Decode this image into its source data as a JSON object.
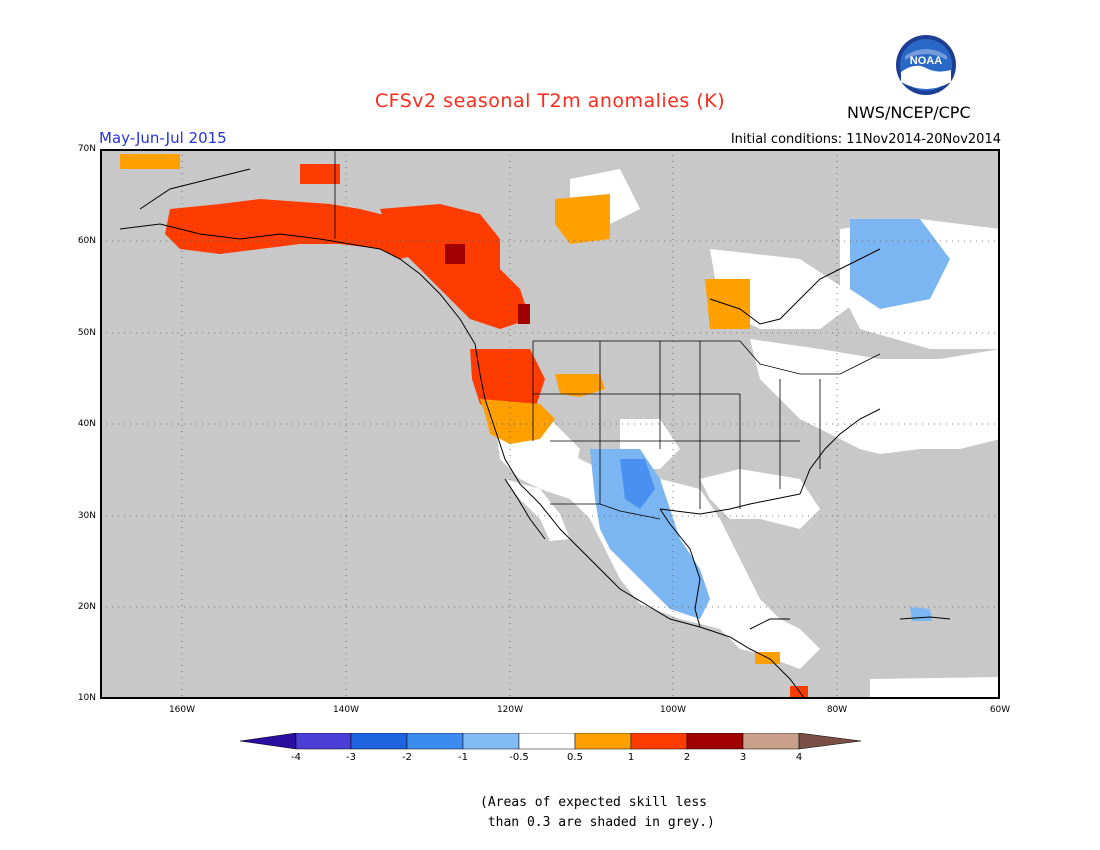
{
  "header": {
    "title": "CFSv2 seasonal T2m anomalies (K)",
    "period": "May-Jun-Jul 2015",
    "init_conditions": "Initial conditions: 11Nov2014-20Nov2014",
    "org": "NWS/NCEP/CPC",
    "logo_text": "NOAA"
  },
  "map": {
    "lat_labels": [
      "70N",
      "60N",
      "50N",
      "40N",
      "30N",
      "20N",
      "10N"
    ],
    "lon_labels": [
      "160W",
      "140W",
      "120W",
      "100W",
      "80W",
      "60W"
    ],
    "colors": {
      "background": "#c8c8c8",
      "no_anomaly": "#ffffff",
      "warm_0_5_1": "#ffa000",
      "warm_1_2": "#ff3c00",
      "warm_2_3": "#a00000",
      "cool_0_5_1": "#7cb6f2",
      "cool_1_2": "#4a90f0",
      "cool_2_3": "#1e5fd2"
    }
  },
  "colorbar": {
    "labels": [
      "-4",
      "-3",
      "-2",
      "-1",
      "-0.5",
      "0.5",
      "1",
      "2",
      "3",
      "4"
    ],
    "colors": [
      "#2a0ea0",
      "#4a3ed6",
      "#1e64e0",
      "#3c8cf0",
      "#82bcf5",
      "#ffffff",
      "#ffa000",
      "#ff3c00",
      "#a00000",
      "#c8a08c",
      "#7a5046"
    ]
  },
  "footnote": {
    "line1": "(Areas of expected skill less",
    "line2": " than 0.3 are shaded in grey.)"
  }
}
